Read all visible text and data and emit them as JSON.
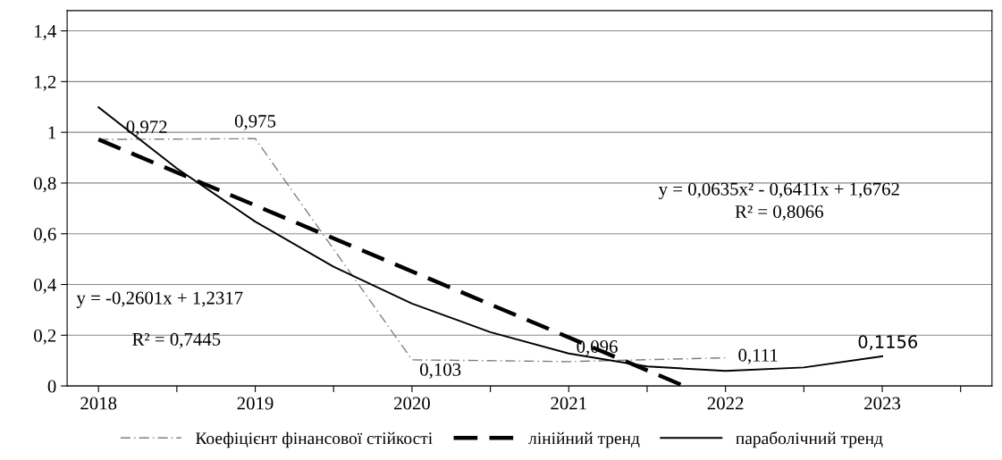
{
  "chart_data": {
    "type": "line",
    "x": [
      2018,
      2019,
      2020,
      2021,
      2022
    ],
    "xlim": [
      2017.8,
      2023.7
    ],
    "xticks": [
      {
        "value": 2018,
        "label": "2018"
      },
      {
        "value": 2018.5,
        "label": null
      },
      {
        "value": 2019,
        "label": "2019"
      },
      {
        "value": 2019.5,
        "label": null
      },
      {
        "value": 2020,
        "label": "2020"
      },
      {
        "value": 2020.5,
        "label": null
      },
      {
        "value": 2021,
        "label": "2021"
      },
      {
        "value": 2021.5,
        "label": null
      },
      {
        "value": 2022,
        "label": "2022"
      },
      {
        "value": 2022.5,
        "label": null
      },
      {
        "value": 2023,
        "label": "2023"
      },
      {
        "value": 2023.5,
        "label": null
      }
    ],
    "ylim": [
      0,
      1.48
    ],
    "yticks": [
      0,
      {
        "value": 0.2,
        "label": "0,2"
      },
      {
        "value": 0.4,
        "label": "0,4"
      },
      {
        "value": 0.6,
        "label": "0,6"
      },
      {
        "value": 0.8,
        "label": "0,8"
      },
      1,
      {
        "value": 1.2,
        "label": "1,2"
      },
      {
        "value": 1.4,
        "label": "1,4"
      }
    ],
    "series": [
      {
        "name": "Коефіцієнт фінансової стійкості",
        "color": "#7f7f7f",
        "line_style": "dashdot",
        "values": [
          0.972,
          0.975,
          0.103,
          0.096,
          0.111
        ],
        "value_labels": [
          "0,972",
          "0,975",
          "0,103",
          "0,096",
          "0,111"
        ]
      },
      {
        "name": "лінійний тренд",
        "color": "#000000",
        "line_style": "dashed",
        "x": [
          2018,
          2021.736
        ],
        "values": [
          0.972,
          0
        ]
      },
      {
        "name": "параболічний тренд",
        "color": "#000000",
        "line_style": "solid",
        "x": [
          2018,
          2018.5,
          2019,
          2019.5,
          2020,
          2020.5,
          2021,
          2021.5,
          2022,
          2022.5,
          2023
        ],
        "values": [
          1.099,
          0.858,
          0.648,
          0.47,
          0.325,
          0.212,
          0.128,
          0.077,
          0.059,
          0.073,
          0.117
        ]
      }
    ],
    "annotations": [
      {
        "text": "0,1156",
        "x": 2023,
        "y": 0.1156
      },
      "y = 0,0635x² - 0,6411x + 1,6762",
      "R² = 0,8066",
      "y = -0,2601x + 1,2317",
      "R² = 0,7445"
    ],
    "grid": "y",
    "legend": "bottom",
    "marker": "none"
  }
}
